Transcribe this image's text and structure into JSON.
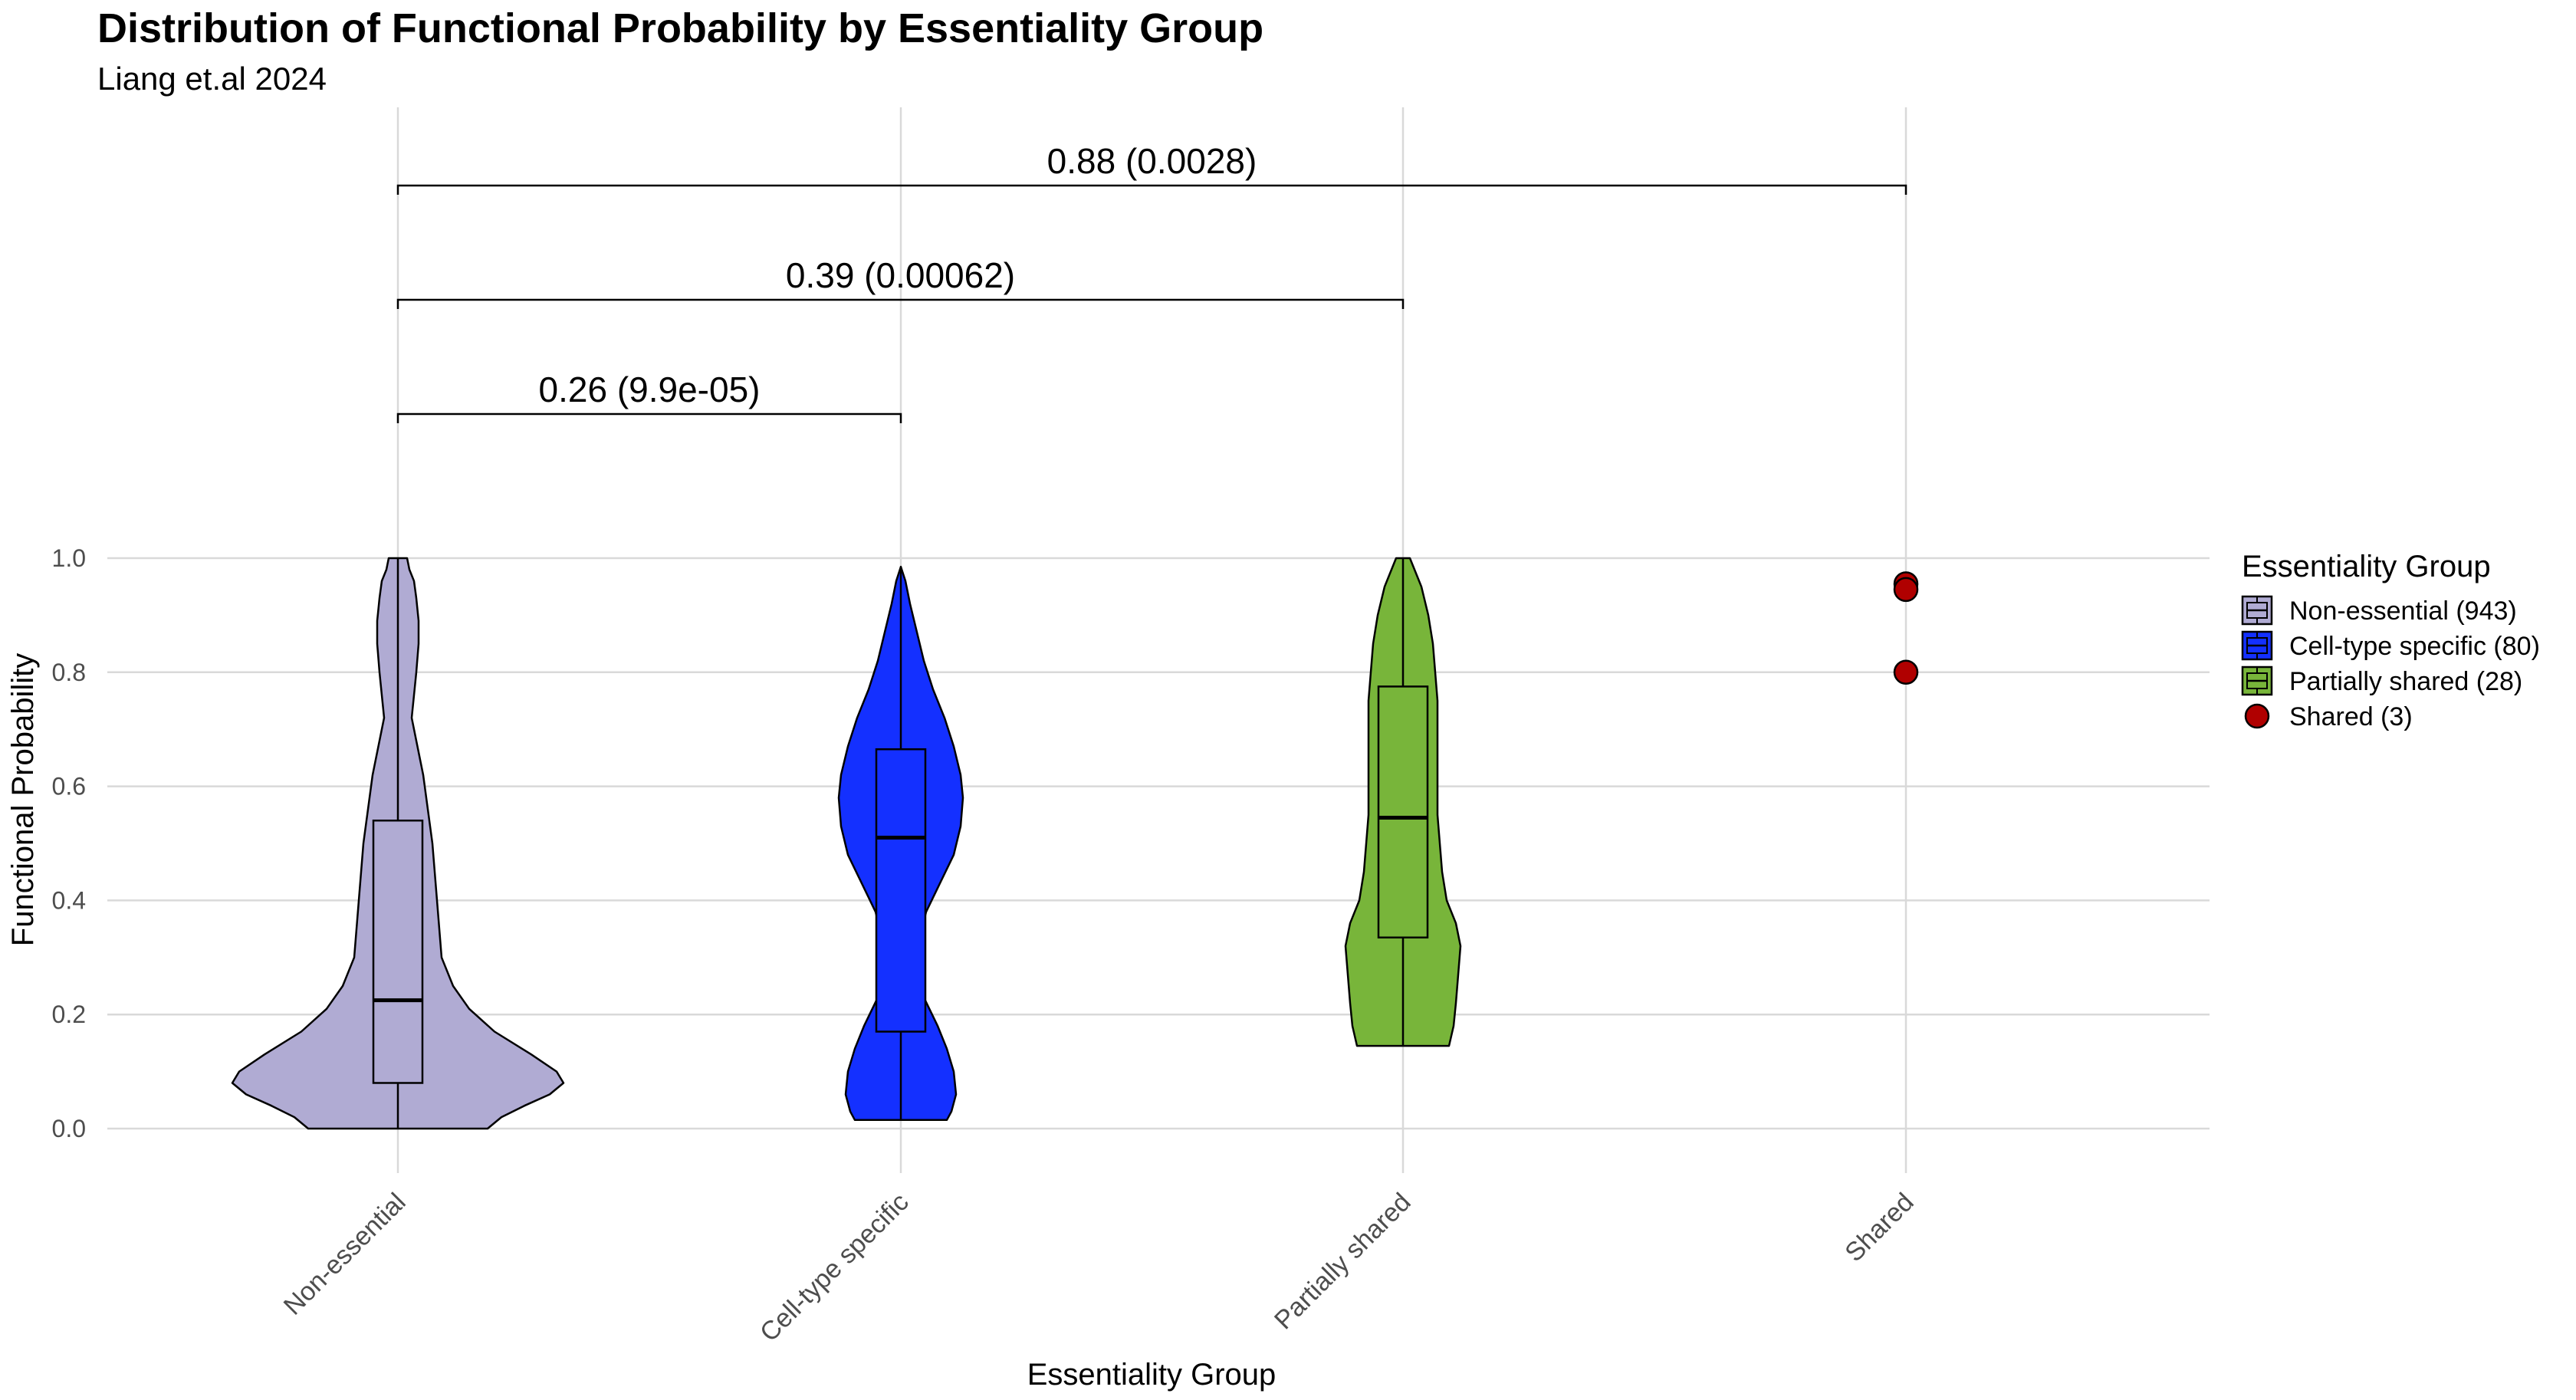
{
  "chart_data": {
    "type": "violin",
    "title": "Distribution of Functional Probability by Essentiality Group",
    "subtitle": "Liang et.al 2024",
    "xlabel": "Essentiality Group",
    "ylabel": "Functional Probability",
    "ylim": [
      0,
      1
    ],
    "yticks": [
      "0.0",
      "0.2",
      "0.4",
      "0.6",
      "0.8",
      "1.0"
    ],
    "ytick_values": [
      0,
      0.2,
      0.4,
      0.6,
      0.8,
      1.0
    ],
    "categories": [
      "Non-essential",
      "Cell-type specific",
      "Partially shared",
      "Shared"
    ],
    "grid": true,
    "legend": {
      "title": "Essentiality Group",
      "position": "right",
      "items": [
        {
          "label": "Non-essential (943)",
          "color": "#B0ABD3",
          "kind": "box"
        },
        {
          "label": "Cell-type specific (80)",
          "color": "#1430FF",
          "kind": "box"
        },
        {
          "label": "Partially shared (28)",
          "color": "#78B53A",
          "kind": "box"
        },
        {
          "label": "Shared (3)",
          "color": "#B00000",
          "kind": "point"
        }
      ]
    },
    "series": [
      {
        "category": "Non-essential",
        "color": "#B0ABD3",
        "min": 0.0,
        "q1": 0.08,
        "median": 0.225,
        "q3": 0.54,
        "max": 1.0,
        "density_profile": [
          [
            0.0,
            0.39
          ],
          [
            0.02,
            0.45
          ],
          [
            0.04,
            0.55
          ],
          [
            0.06,
            0.66
          ],
          [
            0.08,
            0.72
          ],
          [
            0.1,
            0.69
          ],
          [
            0.13,
            0.58
          ],
          [
            0.17,
            0.42
          ],
          [
            0.21,
            0.31
          ],
          [
            0.25,
            0.24
          ],
          [
            0.3,
            0.19
          ],
          [
            0.35,
            0.18
          ],
          [
            0.4,
            0.17
          ],
          [
            0.45,
            0.16
          ],
          [
            0.5,
            0.15
          ],
          [
            0.56,
            0.13
          ],
          [
            0.62,
            0.11
          ],
          [
            0.68,
            0.08
          ],
          [
            0.72,
            0.06
          ],
          [
            0.76,
            0.07
          ],
          [
            0.8,
            0.08
          ],
          [
            0.85,
            0.09
          ],
          [
            0.89,
            0.09
          ],
          [
            0.93,
            0.08
          ],
          [
            0.96,
            0.07
          ],
          [
            0.98,
            0.05
          ],
          [
            1.0,
            0.04
          ]
        ]
      },
      {
        "category": "Cell-type specific",
        "color": "#1430FF",
        "min": 0.015,
        "q1": 0.17,
        "median": 0.51,
        "q3": 0.665,
        "max": 0.985,
        "density_profile": [
          [
            0.015,
            0.2
          ],
          [
            0.03,
            0.22
          ],
          [
            0.06,
            0.24
          ],
          [
            0.1,
            0.23
          ],
          [
            0.14,
            0.2
          ],
          [
            0.18,
            0.16
          ],
          [
            0.23,
            0.1
          ],
          [
            0.28,
            0.08
          ],
          [
            0.33,
            0.08
          ],
          [
            0.38,
            0.11
          ],
          [
            0.43,
            0.17
          ],
          [
            0.48,
            0.23
          ],
          [
            0.53,
            0.26
          ],
          [
            0.58,
            0.27
          ],
          [
            0.62,
            0.26
          ],
          [
            0.67,
            0.23
          ],
          [
            0.72,
            0.19
          ],
          [
            0.77,
            0.14
          ],
          [
            0.82,
            0.1
          ],
          [
            0.87,
            0.07
          ],
          [
            0.92,
            0.04
          ],
          [
            0.96,
            0.02
          ],
          [
            0.985,
            0.0
          ]
        ]
      },
      {
        "category": "Partially shared",
        "color": "#78B53A",
        "min": 0.145,
        "q1": 0.335,
        "median": 0.545,
        "q3": 0.775,
        "max": 1.0,
        "density_profile": [
          [
            0.145,
            0.2
          ],
          [
            0.18,
            0.22
          ],
          [
            0.22,
            0.23
          ],
          [
            0.27,
            0.24
          ],
          [
            0.32,
            0.25
          ],
          [
            0.36,
            0.23
          ],
          [
            0.4,
            0.19
          ],
          [
            0.45,
            0.17
          ],
          [
            0.5,
            0.16
          ],
          [
            0.55,
            0.15
          ],
          [
            0.6,
            0.15
          ],
          [
            0.65,
            0.15
          ],
          [
            0.7,
            0.15
          ],
          [
            0.75,
            0.15
          ],
          [
            0.8,
            0.14
          ],
          [
            0.85,
            0.13
          ],
          [
            0.9,
            0.11
          ],
          [
            0.95,
            0.08
          ],
          [
            0.98,
            0.05
          ],
          [
            1.0,
            0.03
          ]
        ]
      },
      {
        "category": "Shared",
        "color": "#B00000",
        "points": [
          0.955,
          0.945,
          0.8
        ]
      }
    ],
    "comparisons": [
      {
        "from": "Non-essential",
        "to": "Cell-type specific",
        "label": "0.26 (9.9e-05)",
        "level": 1
      },
      {
        "from": "Non-essential",
        "to": "Partially shared",
        "label": "0.39 (0.00062)",
        "level": 2
      },
      {
        "from": "Non-essential",
        "to": "Shared",
        "label": "0.88 (0.0028)",
        "level": 3
      }
    ]
  }
}
